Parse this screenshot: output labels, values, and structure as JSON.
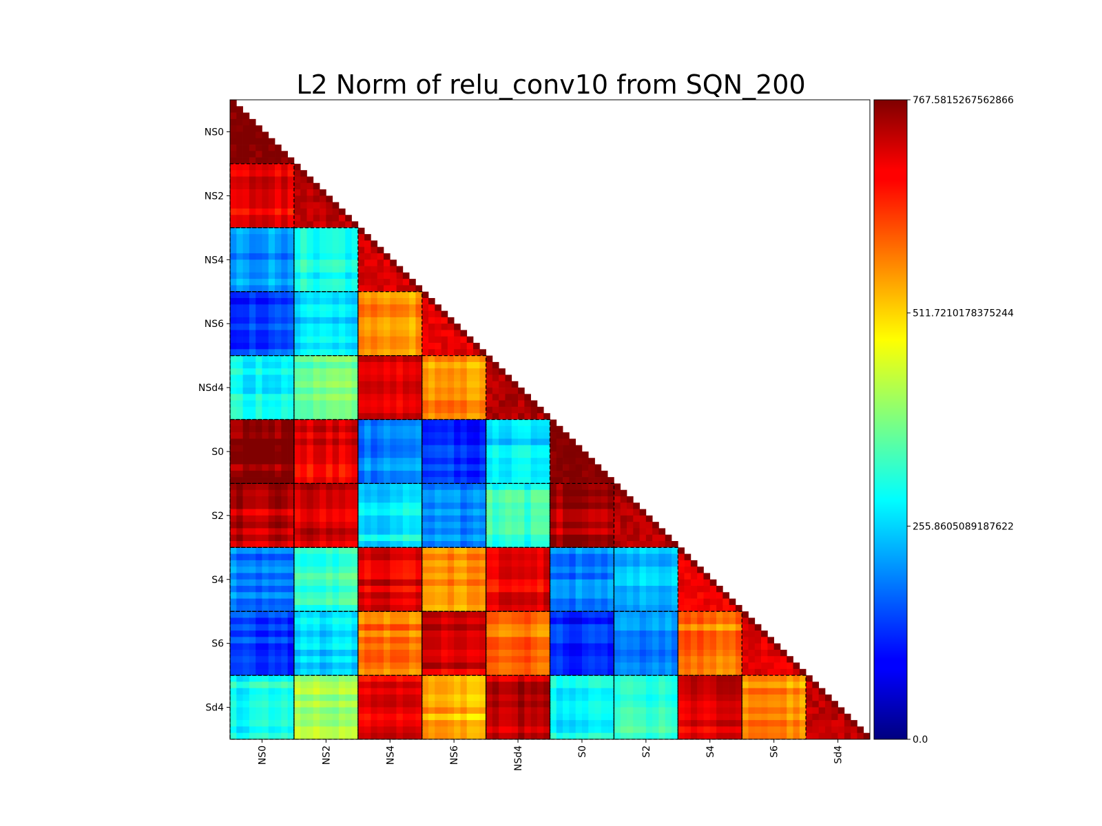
{
  "chart_data": {
    "type": "heatmap",
    "title": "L2 Norm of relu_conv10 from SQN_200",
    "xlabel": "",
    "ylabel": "",
    "groups": [
      "NS0",
      "NS2",
      "NS4",
      "NS6",
      "NSd4",
      "S0",
      "S2",
      "S4",
      "S6",
      "Sd4"
    ],
    "items_per_group": 10,
    "matrix_shape": "lower-triangular",
    "colormap": "jet",
    "colorbar": {
      "min": 0.0,
      "max": 767.5815267562866,
      "tick_labels": [
        "767.5815267562866",
        "511.7210178375244",
        "255.8605089187622",
        "0.0"
      ],
      "tick_values": [
        767.5815267562866,
        511.7210178375244,
        255.8605089187622,
        0.0
      ]
    },
    "grid": false,
    "block_outline": "dashed black",
    "block_means": [
      [
        767
      ],
      [
        690,
        720
      ],
      [
        215,
        300,
        700
      ],
      [
        140,
        250,
        570,
        690
      ],
      [
        285,
        365,
        700,
        560,
        730
      ],
      [
        760,
        685,
        200,
        120,
        270,
        767
      ],
      [
        720,
        710,
        275,
        180,
        320,
        730,
        725
      ],
      [
        190,
        330,
        690,
        560,
        680,
        190,
        240,
        680
      ],
      [
        135,
        265,
        580,
        700,
        580,
        120,
        195,
        580,
        690
      ],
      [
        300,
        410,
        680,
        540,
        715,
        280,
        330,
        690,
        555,
        720
      ]
    ]
  }
}
